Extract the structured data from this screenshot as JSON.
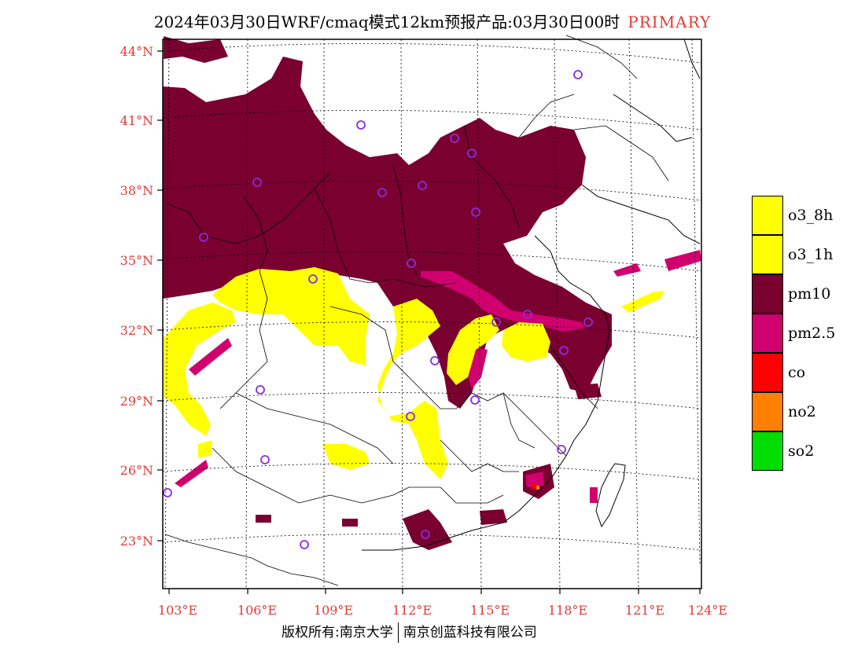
{
  "title": {
    "main": "2024年03月30日WRF/cmaq模式12km预报产品:03月30日00时",
    "tag": "PRIMARY"
  },
  "axes": {
    "lat_labels": [
      "44°N",
      "41°N",
      "38°N",
      "35°N",
      "32°N",
      "29°N",
      "26°N",
      "23°N"
    ],
    "lon_labels": [
      "103°E",
      "106°E",
      "109°E",
      "112°E",
      "115°E",
      "118°E",
      "121°E",
      "124°E"
    ]
  },
  "legend": [
    {
      "label": "o3_8h",
      "color": "#ffff00"
    },
    {
      "label": "o3_1h",
      "color": "#ffff00"
    },
    {
      "label": "pm10",
      "color": "#7a0030"
    },
    {
      "label": "pm2.5",
      "color": "#d0006f"
    },
    {
      "label": "co",
      "color": "#ff0000"
    },
    {
      "label": "no2",
      "color": "#ff8000"
    },
    {
      "label": "so2",
      "color": "#00dd00"
    }
  ],
  "footer": {
    "left": "版权所有:南京大学",
    "right": "南京创蓝科技有限公司"
  },
  "colors": {
    "station_marker": "#8a2be2",
    "axis_text": "#e53935"
  }
}
